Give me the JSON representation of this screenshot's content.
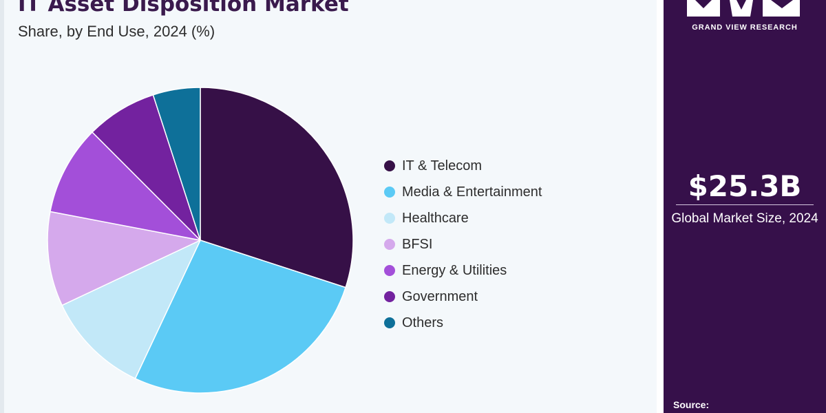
{
  "chart_data": {
    "type": "pie",
    "title": "IT Asset Disposition Market",
    "subtitle": "Share, by End Use, 2024 (%)",
    "slices": [
      {
        "label": "IT & Telecom",
        "value": 30.0,
        "color": "#361047"
      },
      {
        "label": "Media & Entertainment",
        "value": 27.0,
        "color": "#5bcaf5"
      },
      {
        "label": "Healthcare",
        "value": 11.0,
        "color": "#c2e8f8"
      },
      {
        "label": "BFSI",
        "value": 10.0,
        "color": "#d5a9ec"
      },
      {
        "label": "Energy & Utilities",
        "value": 9.5,
        "color": "#a34fd9"
      },
      {
        "label": "Government",
        "value": 7.5,
        "color": "#73229f"
      },
      {
        "label": "Others",
        "value": 5.0,
        "color": "#0e7099"
      }
    ],
    "start": "top",
    "direction": "clockwise",
    "legend_position": "right"
  },
  "side_panel": {
    "brand": "GRAND VIEW RESEARCH",
    "market_value": "$25.3B",
    "market_caption": "Global Market Size, 2024",
    "source_label": "Source:"
  },
  "colors": {
    "panel_bg": "#36104a",
    "page_bg": "#f4f8fb",
    "title_color": "#3a1a4d"
  }
}
